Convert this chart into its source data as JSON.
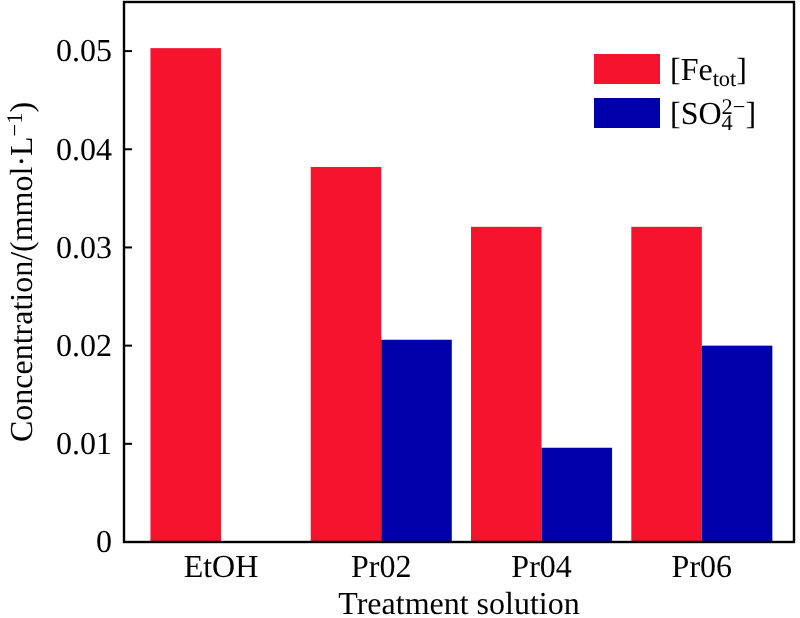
{
  "chart_data": {
    "type": "bar",
    "xlabel": "Treatment solution",
    "ylabel": "Concentration/(mmol·L$^{−1}$)",
    "categories": [
      "EtOH",
      "Pr02",
      "Pr04",
      "Pr06"
    ],
    "series": [
      {
        "name": "[Fe$_{tot}$]",
        "color": "#f5132d",
        "values": [
          0.0503,
          0.0382,
          0.0321,
          0.0321
        ]
      },
      {
        "name": "[SO$_{4}$$^{2−}$]",
        "color": "#0000aa",
        "values": [
          null,
          0.0206,
          0.0096,
          0.02
        ]
      }
    ],
    "ylim": [
      0,
      0.055
    ],
    "yticks": [
      0,
      0.01,
      0.02,
      0.03,
      0.04,
      0.05
    ],
    "legend": "top right",
    "grid": false
  }
}
